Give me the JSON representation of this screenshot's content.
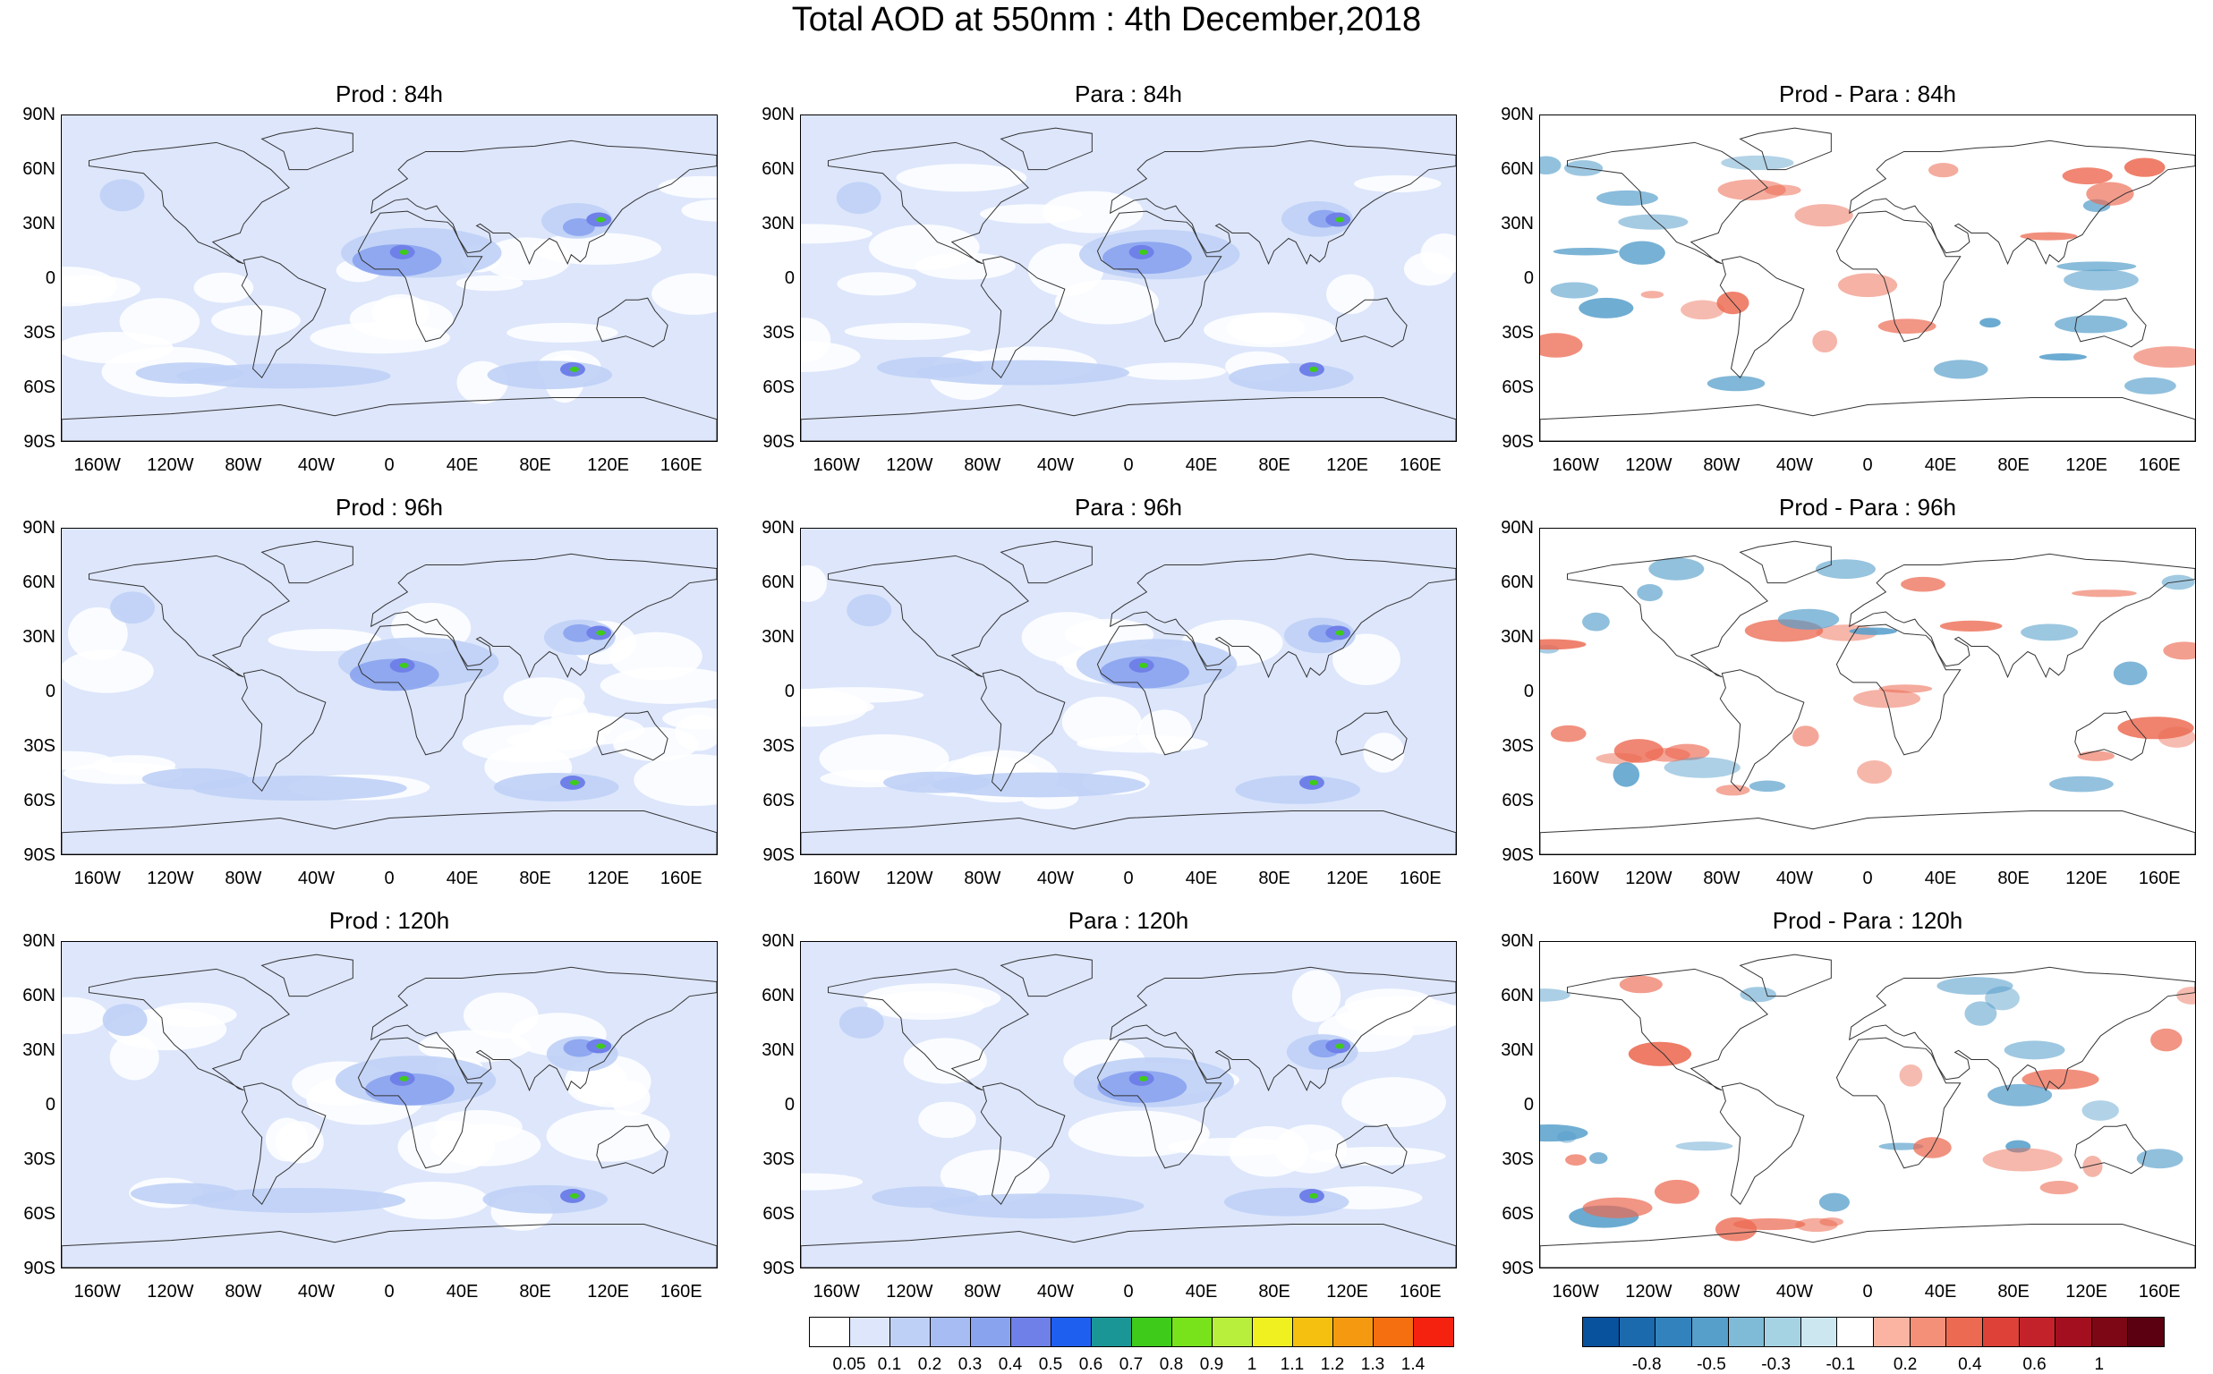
{
  "title": "Total AOD at 550nm : 4th December,2018",
  "lat_labels": [
    "90N",
    "60N",
    "30N",
    "0",
    "30S",
    "60S",
    "90S"
  ],
  "lon_labels": [
    "160W",
    "120W",
    "80W",
    "40W",
    "0",
    "40E",
    "80E",
    "120E",
    "160E"
  ],
  "panels": [
    {
      "title": "Prod : 84h",
      "kind": "aod"
    },
    {
      "title": "Para : 84h",
      "kind": "aod"
    },
    {
      "title": "Prod - Para : 84h",
      "kind": "diff"
    },
    {
      "title": "Prod : 96h",
      "kind": "aod"
    },
    {
      "title": "Para : 96h",
      "kind": "aod"
    },
    {
      "title": "Prod - Para : 96h",
      "kind": "diff"
    },
    {
      "title": "Prod : 120h",
      "kind": "aod"
    },
    {
      "title": "Para : 120h",
      "kind": "aod"
    },
    {
      "title": "Prod - Para : 120h",
      "kind": "diff"
    }
  ],
  "aod_colorbar": {
    "labels": [
      "0.05",
      "0.1",
      "0.2",
      "0.3",
      "0.4",
      "0.5",
      "0.6",
      "0.7",
      "0.8",
      "0.9",
      "1",
      "1.1",
      "1.2",
      "1.3",
      "1.4"
    ],
    "colors": [
      "#ffffff",
      "#dde6fb",
      "#bfd0f6",
      "#a6bcf2",
      "#8aa3ee",
      "#6f80e8",
      "#1f5ff0",
      "#1a9696",
      "#3ecb1a",
      "#78e21a",
      "#b8ef3c",
      "#f0f020",
      "#f5c010",
      "#f59a10",
      "#f56e10",
      "#f52210"
    ]
  },
  "diff_colorbar": {
    "labels": [
      "-0.8",
      "-0.5",
      "-0.3",
      "-0.1",
      "0.2",
      "0.4",
      "0.6",
      "1"
    ],
    "colors": [
      "#08519c",
      "#1b6aae",
      "#3283bd",
      "#579fcb",
      "#7fbad6",
      "#a6d3e3",
      "#cde7f0",
      "#ffffff",
      "#fbb4a1",
      "#f48f78",
      "#ec6a52",
      "#de4137",
      "#c4222a",
      "#a30f1e",
      "#7d0715",
      "#5a0010"
    ]
  },
  "map_colors": {
    "aod_base": "#dde6fb",
    "aod_mid": "#bfd0f6",
    "aod_high": "#8aa3ee",
    "aod_peak": "#6f80e8",
    "hotspot": "#3ecb1a",
    "diff_pos": "#ec6a52",
    "diff_neg": "#579fcb",
    "coast": "#333333"
  }
}
